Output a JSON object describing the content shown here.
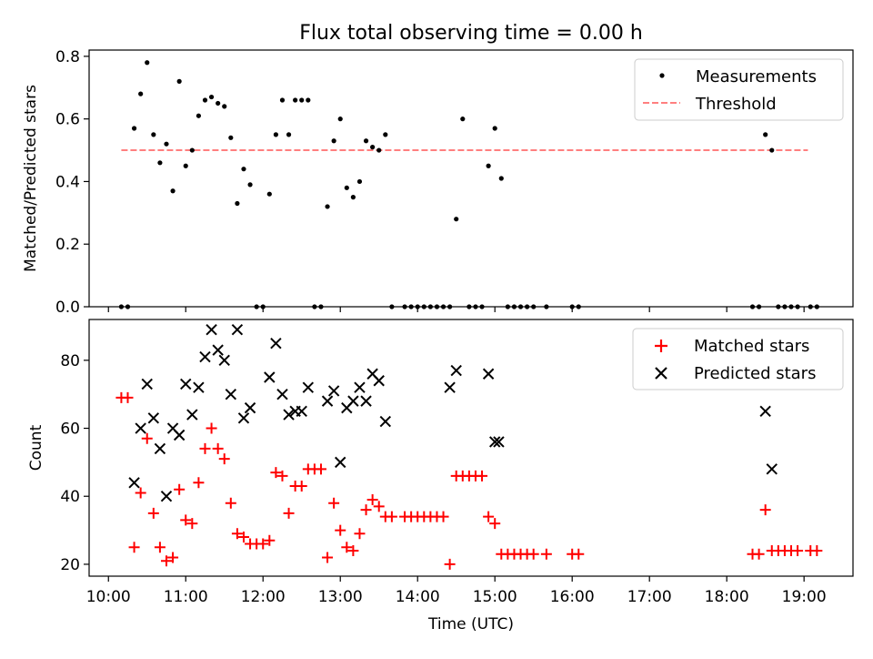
{
  "figure": {
    "title": "Flux total observing time = 0.00 h",
    "xlabel": "Time (UTC)",
    "colors": {
      "measurement": "#000000",
      "threshold": "#ff7f7f",
      "matched": "#ff0000",
      "predicted": "#000000"
    }
  },
  "chart_data": [
    {
      "type": "scatter",
      "title": "Flux total observing time = 0.00 h",
      "ylabel": "Matched/Predicted stars",
      "xlabel": "",
      "xlim": [
        "09:45",
        "19:38"
      ],
      "ylim": [
        0,
        0.82
      ],
      "x_ticks": [
        "10:00",
        "11:00",
        "12:00",
        "13:00",
        "14:00",
        "15:00",
        "16:00",
        "17:00",
        "18:00",
        "19:00"
      ],
      "y_ticks": [
        "0.0",
        "0.2",
        "0.4",
        "0.6",
        "0.8"
      ],
      "grid": false,
      "legend": {
        "position": "top-right",
        "entries": [
          "Measurements",
          "Threshold"
        ]
      },
      "threshold": {
        "name": "Threshold",
        "value": 0.5,
        "x_range": [
          "10:10",
          "19:03"
        ]
      },
      "series": [
        {
          "name": "Measurements",
          "marker": "dot",
          "points": [
            {
              "x": "10:10",
              "y": 0.0
            },
            {
              "x": "10:15",
              "y": 0.0
            },
            {
              "x": "10:20",
              "y": 0.57
            },
            {
              "x": "10:25",
              "y": 0.68
            },
            {
              "x": "10:30",
              "y": 0.78
            },
            {
              "x": "10:35",
              "y": 0.55
            },
            {
              "x": "10:40",
              "y": 0.46
            },
            {
              "x": "10:45",
              "y": 0.52
            },
            {
              "x": "10:50",
              "y": 0.37
            },
            {
              "x": "10:55",
              "y": 0.72
            },
            {
              "x": "11:00",
              "y": 0.45
            },
            {
              "x": "11:05",
              "y": 0.5
            },
            {
              "x": "11:10",
              "y": 0.61
            },
            {
              "x": "11:15",
              "y": 0.66
            },
            {
              "x": "11:20",
              "y": 0.67
            },
            {
              "x": "11:25",
              "y": 0.65
            },
            {
              "x": "11:30",
              "y": 0.64
            },
            {
              "x": "11:35",
              "y": 0.54
            },
            {
              "x": "11:40",
              "y": 0.33
            },
            {
              "x": "11:45",
              "y": 0.44
            },
            {
              "x": "11:50",
              "y": 0.39
            },
            {
              "x": "11:55",
              "y": 0.0
            },
            {
              "x": "12:00",
              "y": 0.0
            },
            {
              "x": "12:05",
              "y": 0.36
            },
            {
              "x": "12:10",
              "y": 0.55
            },
            {
              "x": "12:15",
              "y": 0.66
            },
            {
              "x": "12:20",
              "y": 0.55
            },
            {
              "x": "12:25",
              "y": 0.66
            },
            {
              "x": "12:30",
              "y": 0.66
            },
            {
              "x": "12:35",
              "y": 0.66
            },
            {
              "x": "12:40",
              "y": 0.0
            },
            {
              "x": "12:45",
              "y": 0.0
            },
            {
              "x": "12:50",
              "y": 0.32
            },
            {
              "x": "12:55",
              "y": 0.53
            },
            {
              "x": "13:00",
              "y": 0.6
            },
            {
              "x": "13:05",
              "y": 0.38
            },
            {
              "x": "13:10",
              "y": 0.35
            },
            {
              "x": "13:15",
              "y": 0.4
            },
            {
              "x": "13:20",
              "y": 0.53
            },
            {
              "x": "13:25",
              "y": 0.51
            },
            {
              "x": "13:30",
              "y": 0.5
            },
            {
              "x": "13:35",
              "y": 0.55
            },
            {
              "x": "13:40",
              "y": 0.0
            },
            {
              "x": "13:50",
              "y": 0.0
            },
            {
              "x": "13:55",
              "y": 0.0
            },
            {
              "x": "14:00",
              "y": 0.0
            },
            {
              "x": "14:05",
              "y": 0.0
            },
            {
              "x": "14:10",
              "y": 0.0
            },
            {
              "x": "14:15",
              "y": 0.0
            },
            {
              "x": "14:20",
              "y": 0.0
            },
            {
              "x": "14:25",
              "y": 0.0
            },
            {
              "x": "14:30",
              "y": 0.28
            },
            {
              "x": "14:35",
              "y": 0.6
            },
            {
              "x": "14:40",
              "y": 0.0
            },
            {
              "x": "14:45",
              "y": 0.0
            },
            {
              "x": "14:50",
              "y": 0.0
            },
            {
              "x": "14:55",
              "y": 0.45
            },
            {
              "x": "15:00",
              "y": 0.57
            },
            {
              "x": "15:05",
              "y": 0.41
            },
            {
              "x": "15:10",
              "y": 0.0
            },
            {
              "x": "15:15",
              "y": 0.0
            },
            {
              "x": "15:20",
              "y": 0.0
            },
            {
              "x": "15:25",
              "y": 0.0
            },
            {
              "x": "15:30",
              "y": 0.0
            },
            {
              "x": "15:40",
              "y": 0.0
            },
            {
              "x": "16:00",
              "y": 0.0
            },
            {
              "x": "16:05",
              "y": 0.0
            },
            {
              "x": "18:20",
              "y": 0.0
            },
            {
              "x": "18:25",
              "y": 0.0
            },
            {
              "x": "18:30",
              "y": 0.55
            },
            {
              "x": "18:35",
              "y": 0.5
            },
            {
              "x": "18:40",
              "y": 0.0
            },
            {
              "x": "18:45",
              "y": 0.0
            },
            {
              "x": "18:50",
              "y": 0.0
            },
            {
              "x": "18:55",
              "y": 0.0
            },
            {
              "x": "19:05",
              "y": 0.0
            },
            {
              "x": "19:10",
              "y": 0.0
            }
          ]
        }
      ]
    },
    {
      "type": "scatter",
      "title": "",
      "ylabel": "Count",
      "xlabel": "Time (UTC)",
      "xlim": [
        "09:45",
        "19:38"
      ],
      "ylim": [
        16.5,
        92
      ],
      "x_ticks": [
        "10:00",
        "11:00",
        "12:00",
        "13:00",
        "14:00",
        "15:00",
        "16:00",
        "17:00",
        "18:00",
        "19:00"
      ],
      "y_ticks": [
        "20",
        "40",
        "60",
        "80"
      ],
      "grid": false,
      "legend": {
        "position": "top-right",
        "entries": [
          "Matched stars",
          "Predicted stars"
        ]
      },
      "series": [
        {
          "name": "Matched stars",
          "marker": "plus",
          "points": [
            {
              "x": "10:10",
              "y": 69
            },
            {
              "x": "10:15",
              "y": 69
            },
            {
              "x": "10:20",
              "y": 25
            },
            {
              "x": "10:25",
              "y": 41
            },
            {
              "x": "10:30",
              "y": 57
            },
            {
              "x": "10:35",
              "y": 35
            },
            {
              "x": "10:40",
              "y": 25
            },
            {
              "x": "10:45",
              "y": 21
            },
            {
              "x": "10:50",
              "y": 22
            },
            {
              "x": "10:55",
              "y": 42
            },
            {
              "x": "11:00",
              "y": 33
            },
            {
              "x": "11:05",
              "y": 32
            },
            {
              "x": "11:10",
              "y": 44
            },
            {
              "x": "11:15",
              "y": 54
            },
            {
              "x": "11:20",
              "y": 60
            },
            {
              "x": "11:25",
              "y": 54
            },
            {
              "x": "11:30",
              "y": 51
            },
            {
              "x": "11:35",
              "y": 38
            },
            {
              "x": "11:40",
              "y": 29
            },
            {
              "x": "11:45",
              "y": 28
            },
            {
              "x": "11:50",
              "y": 26
            },
            {
              "x": "11:55",
              "y": 26
            },
            {
              "x": "12:00",
              "y": 26
            },
            {
              "x": "12:05",
              "y": 27
            },
            {
              "x": "12:10",
              "y": 47
            },
            {
              "x": "12:15",
              "y": 46
            },
            {
              "x": "12:20",
              "y": 35
            },
            {
              "x": "12:25",
              "y": 43
            },
            {
              "x": "12:30",
              "y": 43
            },
            {
              "x": "12:35",
              "y": 48
            },
            {
              "x": "12:40",
              "y": 48
            },
            {
              "x": "12:45",
              "y": 48
            },
            {
              "x": "12:50",
              "y": 22
            },
            {
              "x": "12:55",
              "y": 38
            },
            {
              "x": "13:00",
              "y": 30
            },
            {
              "x": "13:05",
              "y": 25
            },
            {
              "x": "13:10",
              "y": 24
            },
            {
              "x": "13:15",
              "y": 29
            },
            {
              "x": "13:20",
              "y": 36
            },
            {
              "x": "13:25",
              "y": 39
            },
            {
              "x": "13:30",
              "y": 37
            },
            {
              "x": "13:35",
              "y": 34
            },
            {
              "x": "13:40",
              "y": 34
            },
            {
              "x": "13:50",
              "y": 34
            },
            {
              "x": "13:55",
              "y": 34
            },
            {
              "x": "14:00",
              "y": 34
            },
            {
              "x": "14:05",
              "y": 34
            },
            {
              "x": "14:10",
              "y": 34
            },
            {
              "x": "14:15",
              "y": 34
            },
            {
              "x": "14:20",
              "y": 34
            },
            {
              "x": "14:25",
              "y": 20
            },
            {
              "x": "14:30",
              "y": 46
            },
            {
              "x": "14:35",
              "y": 46
            },
            {
              "x": "14:40",
              "y": 46
            },
            {
              "x": "14:45",
              "y": 46
            },
            {
              "x": "14:50",
              "y": 46
            },
            {
              "x": "14:55",
              "y": 34
            },
            {
              "x": "15:00",
              "y": 32
            },
            {
              "x": "15:05",
              "y": 23
            },
            {
              "x": "15:10",
              "y": 23
            },
            {
              "x": "15:15",
              "y": 23
            },
            {
              "x": "15:20",
              "y": 23
            },
            {
              "x": "15:25",
              "y": 23
            },
            {
              "x": "15:30",
              "y": 23
            },
            {
              "x": "15:40",
              "y": 23
            },
            {
              "x": "16:00",
              "y": 23
            },
            {
              "x": "16:05",
              "y": 23
            },
            {
              "x": "18:20",
              "y": 23
            },
            {
              "x": "18:25",
              "y": 23
            },
            {
              "x": "18:30",
              "y": 36
            },
            {
              "x": "18:35",
              "y": 24
            },
            {
              "x": "18:40",
              "y": 24
            },
            {
              "x": "18:45",
              "y": 24
            },
            {
              "x": "18:50",
              "y": 24
            },
            {
              "x": "18:55",
              "y": 24
            },
            {
              "x": "19:05",
              "y": 24
            },
            {
              "x": "19:10",
              "y": 24
            }
          ]
        },
        {
          "name": "Predicted stars",
          "marker": "x",
          "points": [
            {
              "x": "10:20",
              "y": 44
            },
            {
              "x": "10:25",
              "y": 60
            },
            {
              "x": "10:30",
              "y": 73
            },
            {
              "x": "10:35",
              "y": 63
            },
            {
              "x": "10:40",
              "y": 54
            },
            {
              "x": "10:45",
              "y": 40
            },
            {
              "x": "10:50",
              "y": 60
            },
            {
              "x": "10:55",
              "y": 58
            },
            {
              "x": "11:00",
              "y": 73
            },
            {
              "x": "11:05",
              "y": 64
            },
            {
              "x": "11:10",
              "y": 72
            },
            {
              "x": "11:15",
              "y": 81
            },
            {
              "x": "11:20",
              "y": 89
            },
            {
              "x": "11:25",
              "y": 83
            },
            {
              "x": "11:30",
              "y": 80
            },
            {
              "x": "11:35",
              "y": 70
            },
            {
              "x": "11:40",
              "y": 89
            },
            {
              "x": "11:45",
              "y": 63
            },
            {
              "x": "11:50",
              "y": 66
            },
            {
              "x": "12:05",
              "y": 75
            },
            {
              "x": "12:10",
              "y": 85
            },
            {
              "x": "12:15",
              "y": 70
            },
            {
              "x": "12:20",
              "y": 64
            },
            {
              "x": "12:25",
              "y": 65
            },
            {
              "x": "12:30",
              "y": 65
            },
            {
              "x": "12:35",
              "y": 72
            },
            {
              "x": "12:50",
              "y": 68
            },
            {
              "x": "12:55",
              "y": 71
            },
            {
              "x": "13:00",
              "y": 50
            },
            {
              "x": "13:05",
              "y": 66
            },
            {
              "x": "13:10",
              "y": 68
            },
            {
              "x": "13:15",
              "y": 72
            },
            {
              "x": "13:20",
              "y": 68
            },
            {
              "x": "13:25",
              "y": 76
            },
            {
              "x": "13:30",
              "y": 74
            },
            {
              "x": "13:35",
              "y": 62
            },
            {
              "x": "14:25",
              "y": 72
            },
            {
              "x": "14:30",
              "y": 77
            },
            {
              "x": "14:55",
              "y": 76
            },
            {
              "x": "15:00",
              "y": 56
            },
            {
              "x": "15:03",
              "y": 56
            },
            {
              "x": "18:30",
              "y": 65
            },
            {
              "x": "18:35",
              "y": 48
            }
          ]
        }
      ]
    }
  ]
}
